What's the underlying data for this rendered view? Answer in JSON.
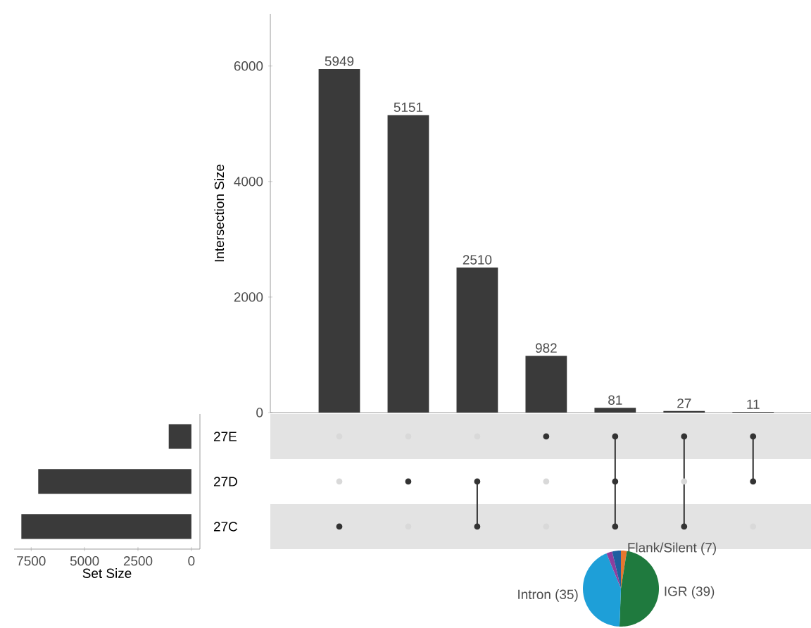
{
  "chart_data": [
    {
      "type": "bar",
      "ylabel": "Intersection Size",
      "categories": [
        null,
        null,
        null,
        null,
        null,
        null,
        null
      ],
      "values": [
        5949,
        5151,
        2510,
        982,
        81,
        27,
        11
      ],
      "color": "#3a3a3a",
      "data_labels": true,
      "ylim": [
        0,
        6900
      ],
      "yticks": [
        0,
        2000,
        4000,
        6000
      ]
    },
    {
      "type": "bar",
      "orientation": "horizontal",
      "xlabel": "Set Size",
      "categories": [
        "27E",
        "27D",
        "27C"
      ],
      "values": [
        1060,
        7170,
        7960
      ],
      "color": "#3a3a3a",
      "xlim": [
        8300,
        -400
      ],
      "xticks": [
        7500,
        5000,
        2500,
        0
      ]
    },
    {
      "type": "pie",
      "categories": [
        "Flank/Silent (7)",
        "IGR (39)",
        "Intron (35)",
        null,
        null
      ],
      "values": [
        2.5,
        48.1,
        43.2,
        2.5,
        3.7
      ],
      "colors": [
        "#e6772e",
        "#1f7a3e",
        "#1e9fd8",
        "#8e3e9e",
        "#1f5fa0"
      ]
    }
  ]
}
